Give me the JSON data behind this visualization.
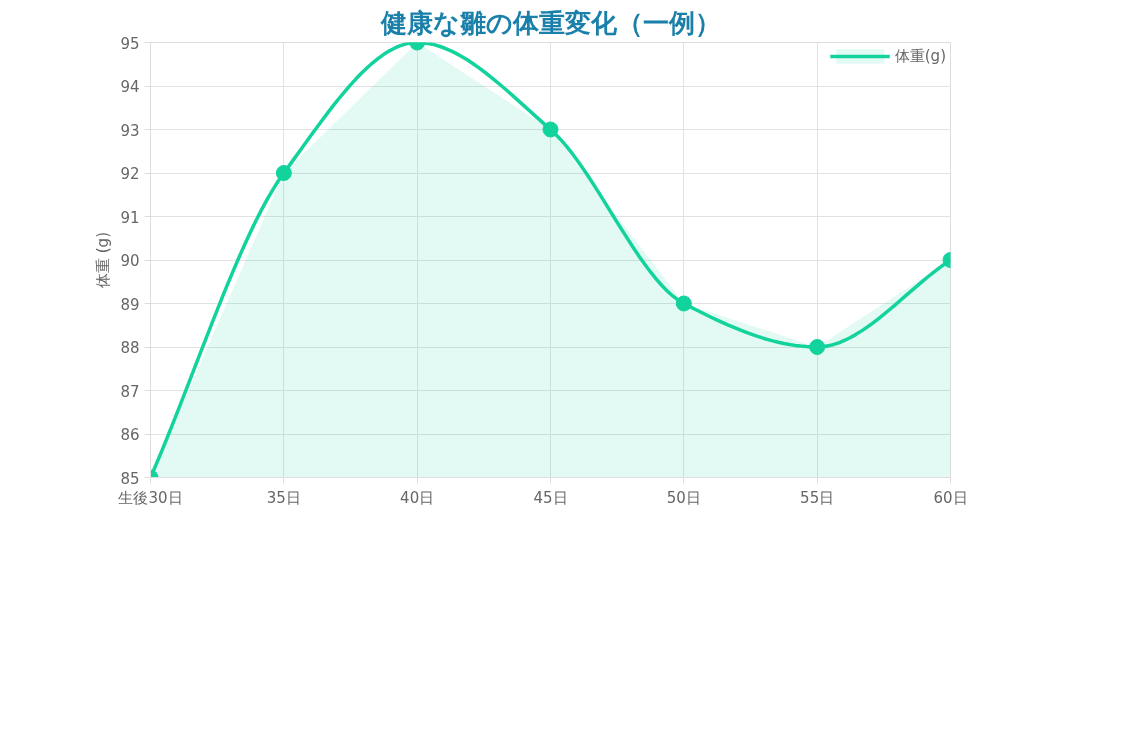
{
  "chart_data": {
    "type": "area",
    "title": "健康な雛の体重変化（一例）",
    "ylabel": "体重 (g)",
    "categories": [
      "生後30日",
      "35日",
      "40日",
      "45日",
      "50日",
      "55日",
      "60日"
    ],
    "series": [
      {
        "name": "体重(g)",
        "color": "#12d39c",
        "values": [
          85,
          92,
          95,
          93,
          89,
          88,
          90
        ]
      }
    ],
    "ylim": [
      85,
      95
    ],
    "yticks": [
      85,
      86,
      87,
      88,
      89,
      90,
      91,
      92,
      93,
      94,
      95
    ],
    "grid": true,
    "legend": "top right",
    "marker": "circle",
    "line_style": "solid"
  }
}
